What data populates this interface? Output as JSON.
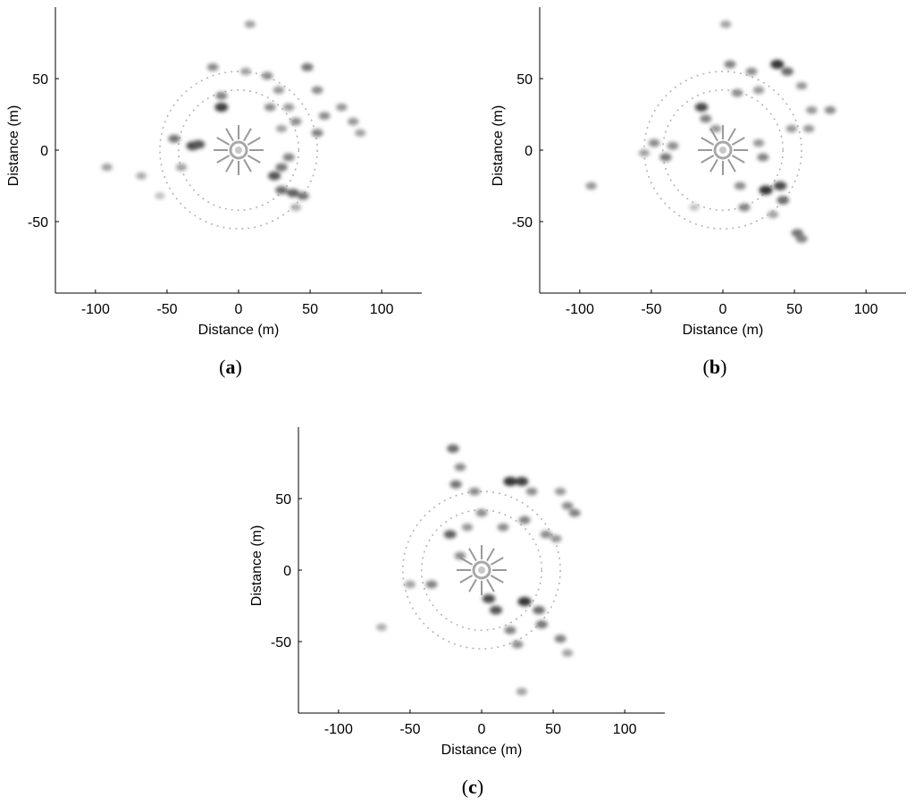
{
  "panels": [
    {
      "caption_open": "(",
      "caption_letter": "a",
      "caption_close": ")",
      "xlabel": "Distance (m)",
      "ylabel": "Distance (m)"
    },
    {
      "caption_open": "(",
      "caption_letter": "b",
      "caption_close": ")",
      "xlabel": "Distance (m)",
      "ylabel": "Distance (m)"
    },
    {
      "caption_open": "(",
      "caption_letter": "c",
      "caption_close": ")",
      "xlabel": "Distance (m)",
      "ylabel": "Distance (m)"
    }
  ],
  "chart_data": [
    {
      "type": "heatmap",
      "xlabel": "Distance (m)",
      "ylabel": "Distance (m)",
      "xlim": [
        -128,
        128
      ],
      "ylim": [
        -100,
        100
      ],
      "xticks": [
        -100,
        -50,
        0,
        50,
        100
      ],
      "yticks": [
        -50,
        0,
        50
      ],
      "colormap": "white-to-black (gray)",
      "grid": false,
      "center": [
        0,
        0
      ],
      "blobs": [
        {
          "x": -92,
          "y": -12,
          "v": 0.35
        },
        {
          "x": -68,
          "y": -18,
          "v": 0.3
        },
        {
          "x": -45,
          "y": 8,
          "v": 0.55
        },
        {
          "x": -32,
          "y": 3,
          "v": 0.75
        },
        {
          "x": -28,
          "y": 4,
          "v": 0.7
        },
        {
          "x": -40,
          "y": -12,
          "v": 0.35
        },
        {
          "x": -55,
          "y": -32,
          "v": 0.2
        },
        {
          "x": -12,
          "y": 30,
          "v": 0.8
        },
        {
          "x": -12,
          "y": 38,
          "v": 0.5
        },
        {
          "x": -18,
          "y": 58,
          "v": 0.45
        },
        {
          "x": 5,
          "y": 55,
          "v": 0.35
        },
        {
          "x": 8,
          "y": 88,
          "v": 0.35
        },
        {
          "x": 20,
          "y": 52,
          "v": 0.45
        },
        {
          "x": 28,
          "y": 42,
          "v": 0.4
        },
        {
          "x": 35,
          "y": 30,
          "v": 0.4
        },
        {
          "x": 40,
          "y": 20,
          "v": 0.45
        },
        {
          "x": 22,
          "y": 30,
          "v": 0.45
        },
        {
          "x": 48,
          "y": 58,
          "v": 0.55
        },
        {
          "x": 55,
          "y": 42,
          "v": 0.45
        },
        {
          "x": 60,
          "y": 24,
          "v": 0.45
        },
        {
          "x": 55,
          "y": 12,
          "v": 0.5
        },
        {
          "x": 72,
          "y": 30,
          "v": 0.4
        },
        {
          "x": 80,
          "y": 20,
          "v": 0.4
        },
        {
          "x": 85,
          "y": 12,
          "v": 0.35
        },
        {
          "x": 35,
          "y": -5,
          "v": 0.5
        },
        {
          "x": 30,
          "y": -12,
          "v": 0.55
        },
        {
          "x": 25,
          "y": -18,
          "v": 0.7
        },
        {
          "x": 30,
          "y": -28,
          "v": 0.6
        },
        {
          "x": 38,
          "y": -30,
          "v": 0.65
        },
        {
          "x": 45,
          "y": -32,
          "v": 0.55
        },
        {
          "x": 40,
          "y": -40,
          "v": 0.3
        },
        {
          "x": 30,
          "y": 15,
          "v": 0.35
        }
      ]
    },
    {
      "type": "heatmap",
      "xlabel": "Distance (m)",
      "ylabel": "Distance (m)",
      "xlim": [
        -128,
        128
      ],
      "ylim": [
        -100,
        100
      ],
      "xticks": [
        -100,
        -50,
        0,
        50,
        100
      ],
      "yticks": [
        -50,
        0,
        50
      ],
      "colormap": "white-to-black (gray)",
      "grid": false,
      "center": [
        0,
        0
      ],
      "blobs": [
        {
          "x": -92,
          "y": -25,
          "v": 0.4
        },
        {
          "x": -55,
          "y": -2,
          "v": 0.35
        },
        {
          "x": -48,
          "y": 5,
          "v": 0.45
        },
        {
          "x": -40,
          "y": -5,
          "v": 0.55
        },
        {
          "x": -35,
          "y": 3,
          "v": 0.45
        },
        {
          "x": -15,
          "y": 30,
          "v": 0.75
        },
        {
          "x": -12,
          "y": 22,
          "v": 0.5
        },
        {
          "x": -5,
          "y": 15,
          "v": 0.4
        },
        {
          "x": 2,
          "y": 88,
          "v": 0.35
        },
        {
          "x": 5,
          "y": 60,
          "v": 0.5
        },
        {
          "x": 10,
          "y": 40,
          "v": 0.45
        },
        {
          "x": 20,
          "y": 55,
          "v": 0.45
        },
        {
          "x": 25,
          "y": 42,
          "v": 0.4
        },
        {
          "x": 38,
          "y": 60,
          "v": 0.85
        },
        {
          "x": 45,
          "y": 55,
          "v": 0.6
        },
        {
          "x": 55,
          "y": 45,
          "v": 0.4
        },
        {
          "x": 62,
          "y": 28,
          "v": 0.4
        },
        {
          "x": 75,
          "y": 28,
          "v": 0.45
        },
        {
          "x": 60,
          "y": 15,
          "v": 0.4
        },
        {
          "x": 48,
          "y": 15,
          "v": 0.4
        },
        {
          "x": 25,
          "y": 5,
          "v": 0.4
        },
        {
          "x": 28,
          "y": -5,
          "v": 0.5
        },
        {
          "x": 12,
          "y": -25,
          "v": 0.45
        },
        {
          "x": 15,
          "y": -40,
          "v": 0.5
        },
        {
          "x": 30,
          "y": -28,
          "v": 0.85
        },
        {
          "x": 40,
          "y": -25,
          "v": 0.75
        },
        {
          "x": 42,
          "y": -35,
          "v": 0.6
        },
        {
          "x": 35,
          "y": -45,
          "v": 0.35
        },
        {
          "x": 52,
          "y": -58,
          "v": 0.55
        },
        {
          "x": 55,
          "y": -62,
          "v": 0.5
        },
        {
          "x": -20,
          "y": -40,
          "v": 0.2
        }
      ]
    },
    {
      "type": "heatmap",
      "xlabel": "Distance (m)",
      "ylabel": "Distance (m)",
      "xlim": [
        -128,
        128
      ],
      "ylim": [
        -100,
        100
      ],
      "xticks": [
        -100,
        -50,
        0,
        50,
        100
      ],
      "yticks": [
        -50,
        0,
        50
      ],
      "colormap": "white-to-black (gray)",
      "grid": false,
      "center": [
        0,
        0
      ],
      "blobs": [
        {
          "x": -20,
          "y": 85,
          "v": 0.6
        },
        {
          "x": -15,
          "y": 72,
          "v": 0.45
        },
        {
          "x": -18,
          "y": 60,
          "v": 0.55
        },
        {
          "x": -5,
          "y": 55,
          "v": 0.45
        },
        {
          "x": 20,
          "y": 62,
          "v": 0.85
        },
        {
          "x": 28,
          "y": 62,
          "v": 0.8
        },
        {
          "x": 35,
          "y": 55,
          "v": 0.45
        },
        {
          "x": 55,
          "y": 55,
          "v": 0.4
        },
        {
          "x": 60,
          "y": 45,
          "v": 0.45
        },
        {
          "x": 65,
          "y": 40,
          "v": 0.5
        },
        {
          "x": 0,
          "y": 40,
          "v": 0.45
        },
        {
          "x": -10,
          "y": 30,
          "v": 0.4
        },
        {
          "x": 15,
          "y": 30,
          "v": 0.45
        },
        {
          "x": 30,
          "y": 35,
          "v": 0.5
        },
        {
          "x": 45,
          "y": 25,
          "v": 0.45
        },
        {
          "x": 52,
          "y": 22,
          "v": 0.4
        },
        {
          "x": -22,
          "y": 25,
          "v": 0.65
        },
        {
          "x": -15,
          "y": 10,
          "v": 0.45
        },
        {
          "x": -35,
          "y": -10,
          "v": 0.5
        },
        {
          "x": -50,
          "y": -10,
          "v": 0.35
        },
        {
          "x": 5,
          "y": -20,
          "v": 0.75
        },
        {
          "x": 10,
          "y": -28,
          "v": 0.7
        },
        {
          "x": 30,
          "y": -22,
          "v": 0.85
        },
        {
          "x": 40,
          "y": -28,
          "v": 0.6
        },
        {
          "x": 42,
          "y": -38,
          "v": 0.55
        },
        {
          "x": 20,
          "y": -42,
          "v": 0.5
        },
        {
          "x": 25,
          "y": -52,
          "v": 0.45
        },
        {
          "x": 55,
          "y": -48,
          "v": 0.5
        },
        {
          "x": 60,
          "y": -58,
          "v": 0.35
        },
        {
          "x": 28,
          "y": -85,
          "v": 0.35
        },
        {
          "x": -70,
          "y": -40,
          "v": 0.3
        }
      ]
    }
  ]
}
